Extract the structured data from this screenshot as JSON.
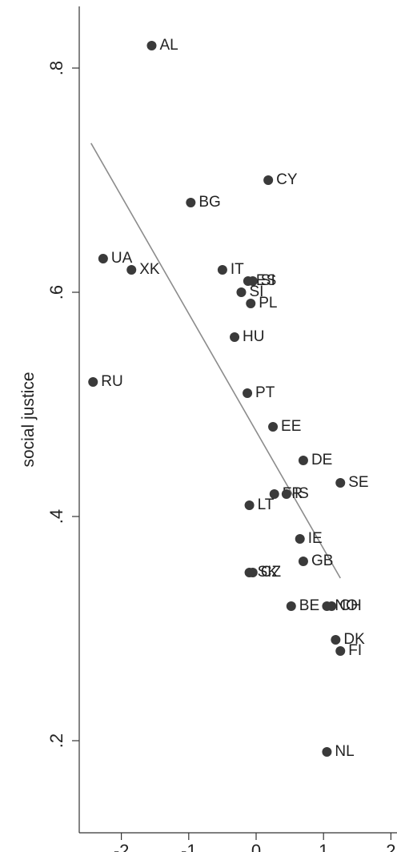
{
  "chart_data": {
    "type": "scatter",
    "title": "",
    "xlabel": "",
    "ylabel": "social justice",
    "xlim": [
      -2.75,
      2.1
    ],
    "ylim": [
      0.1,
      0.83
    ],
    "x_ticks": [
      -2,
      -1,
      0,
      1,
      2
    ],
    "x_tick_labels": [
      "-2",
      "-1",
      "0",
      "1",
      "2"
    ],
    "y_ticks": [
      0.2,
      0.4,
      0.6,
      0.8
    ],
    "y_tick_labels": [
      ".2",
      ".4",
      ".6",
      ".8"
    ],
    "grid": false,
    "colors": {
      "points": "#3a3a3a",
      "fit_line": "#8c8c8c",
      "axis": "#333333"
    },
    "points": [
      {
        "label": "AL",
        "x": -1.55,
        "y": 0.82
      },
      {
        "label": "CY",
        "x": 0.18,
        "y": 0.7
      },
      {
        "label": "BG",
        "x": -0.97,
        "y": 0.68
      },
      {
        "label": "UA",
        "x": -2.27,
        "y": 0.63
      },
      {
        "label": "XK",
        "x": -1.85,
        "y": 0.62
      },
      {
        "label": "IT",
        "x": -0.5,
        "y": 0.62
      },
      {
        "label": "ES",
        "x": -0.12,
        "y": 0.61
      },
      {
        "label": "SI",
        "x": -0.05,
        "y": 0.61
      },
      {
        "label": "PL",
        "x": -0.08,
        "y": 0.59
      },
      {
        "label": "SI",
        "x": -0.22,
        "y": 0.6
      },
      {
        "label": "HU",
        "x": -0.32,
        "y": 0.56
      },
      {
        "label": "RU",
        "x": -2.42,
        "y": 0.52
      },
      {
        "label": "PT",
        "x": -0.13,
        "y": 0.51
      },
      {
        "label": "EE",
        "x": 0.25,
        "y": 0.48
      },
      {
        "label": "DE",
        "x": 0.7,
        "y": 0.45
      },
      {
        "label": "SE",
        "x": 1.25,
        "y": 0.43
      },
      {
        "label": "FR",
        "x": 0.27,
        "y": 0.42
      },
      {
        "label": "IS",
        "x": 0.45,
        "y": 0.42
      },
      {
        "label": "LT",
        "x": -0.1,
        "y": 0.41
      },
      {
        "label": "IE",
        "x": 0.65,
        "y": 0.38
      },
      {
        "label": "GB",
        "x": 0.7,
        "y": 0.36
      },
      {
        "label": "SK",
        "x": -0.1,
        "y": 0.35
      },
      {
        "label": "CZ",
        "x": -0.05,
        "y": 0.35
      },
      {
        "label": "BE",
        "x": 0.52,
        "y": 0.32
      },
      {
        "label": "NO",
        "x": 1.05,
        "y": 0.32
      },
      {
        "label": "CH",
        "x": 1.12,
        "y": 0.32
      },
      {
        "label": "DK",
        "x": 1.18,
        "y": 0.29
      },
      {
        "label": "FI",
        "x": 1.25,
        "y": 0.28
      },
      {
        "label": "NL",
        "x": 1.05,
        "y": 0.19
      }
    ],
    "fit_line": {
      "x": [
        -2.45,
        1.25
      ],
      "y": [
        0.733,
        0.345
      ]
    }
  }
}
